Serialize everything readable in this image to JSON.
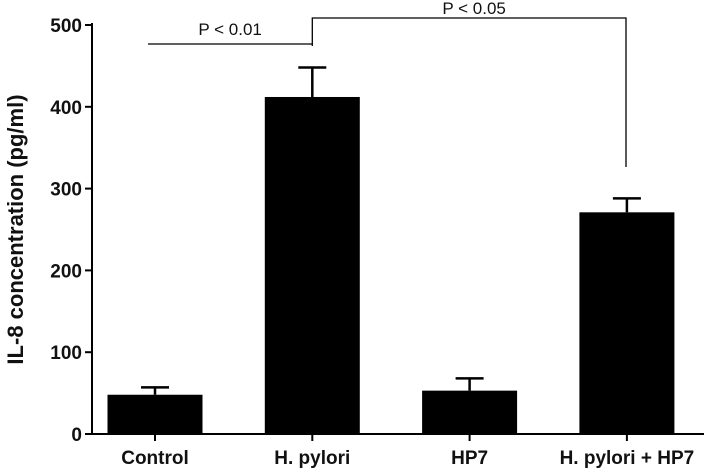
{
  "chart_data": {
    "type": "bar",
    "title": "",
    "xlabel": "",
    "ylabel": "IL-8 concentration (pg/ml)",
    "ylim": [
      0,
      500
    ],
    "yticks": [
      0,
      100,
      200,
      300,
      400,
      500
    ],
    "categories": [
      "Control",
      "H. pylori",
      "HP7",
      "H. pylori + HP7"
    ],
    "values": [
      48,
      412,
      53,
      271
    ],
    "errors": [
      9,
      36,
      15,
      17
    ],
    "bar_color": "#000000",
    "grid": false,
    "significance": [
      {
        "from": 0,
        "to": 1,
        "label": "P < 0.01"
      },
      {
        "from": 1,
        "to": 3,
        "label": "P < 0.05"
      }
    ]
  }
}
